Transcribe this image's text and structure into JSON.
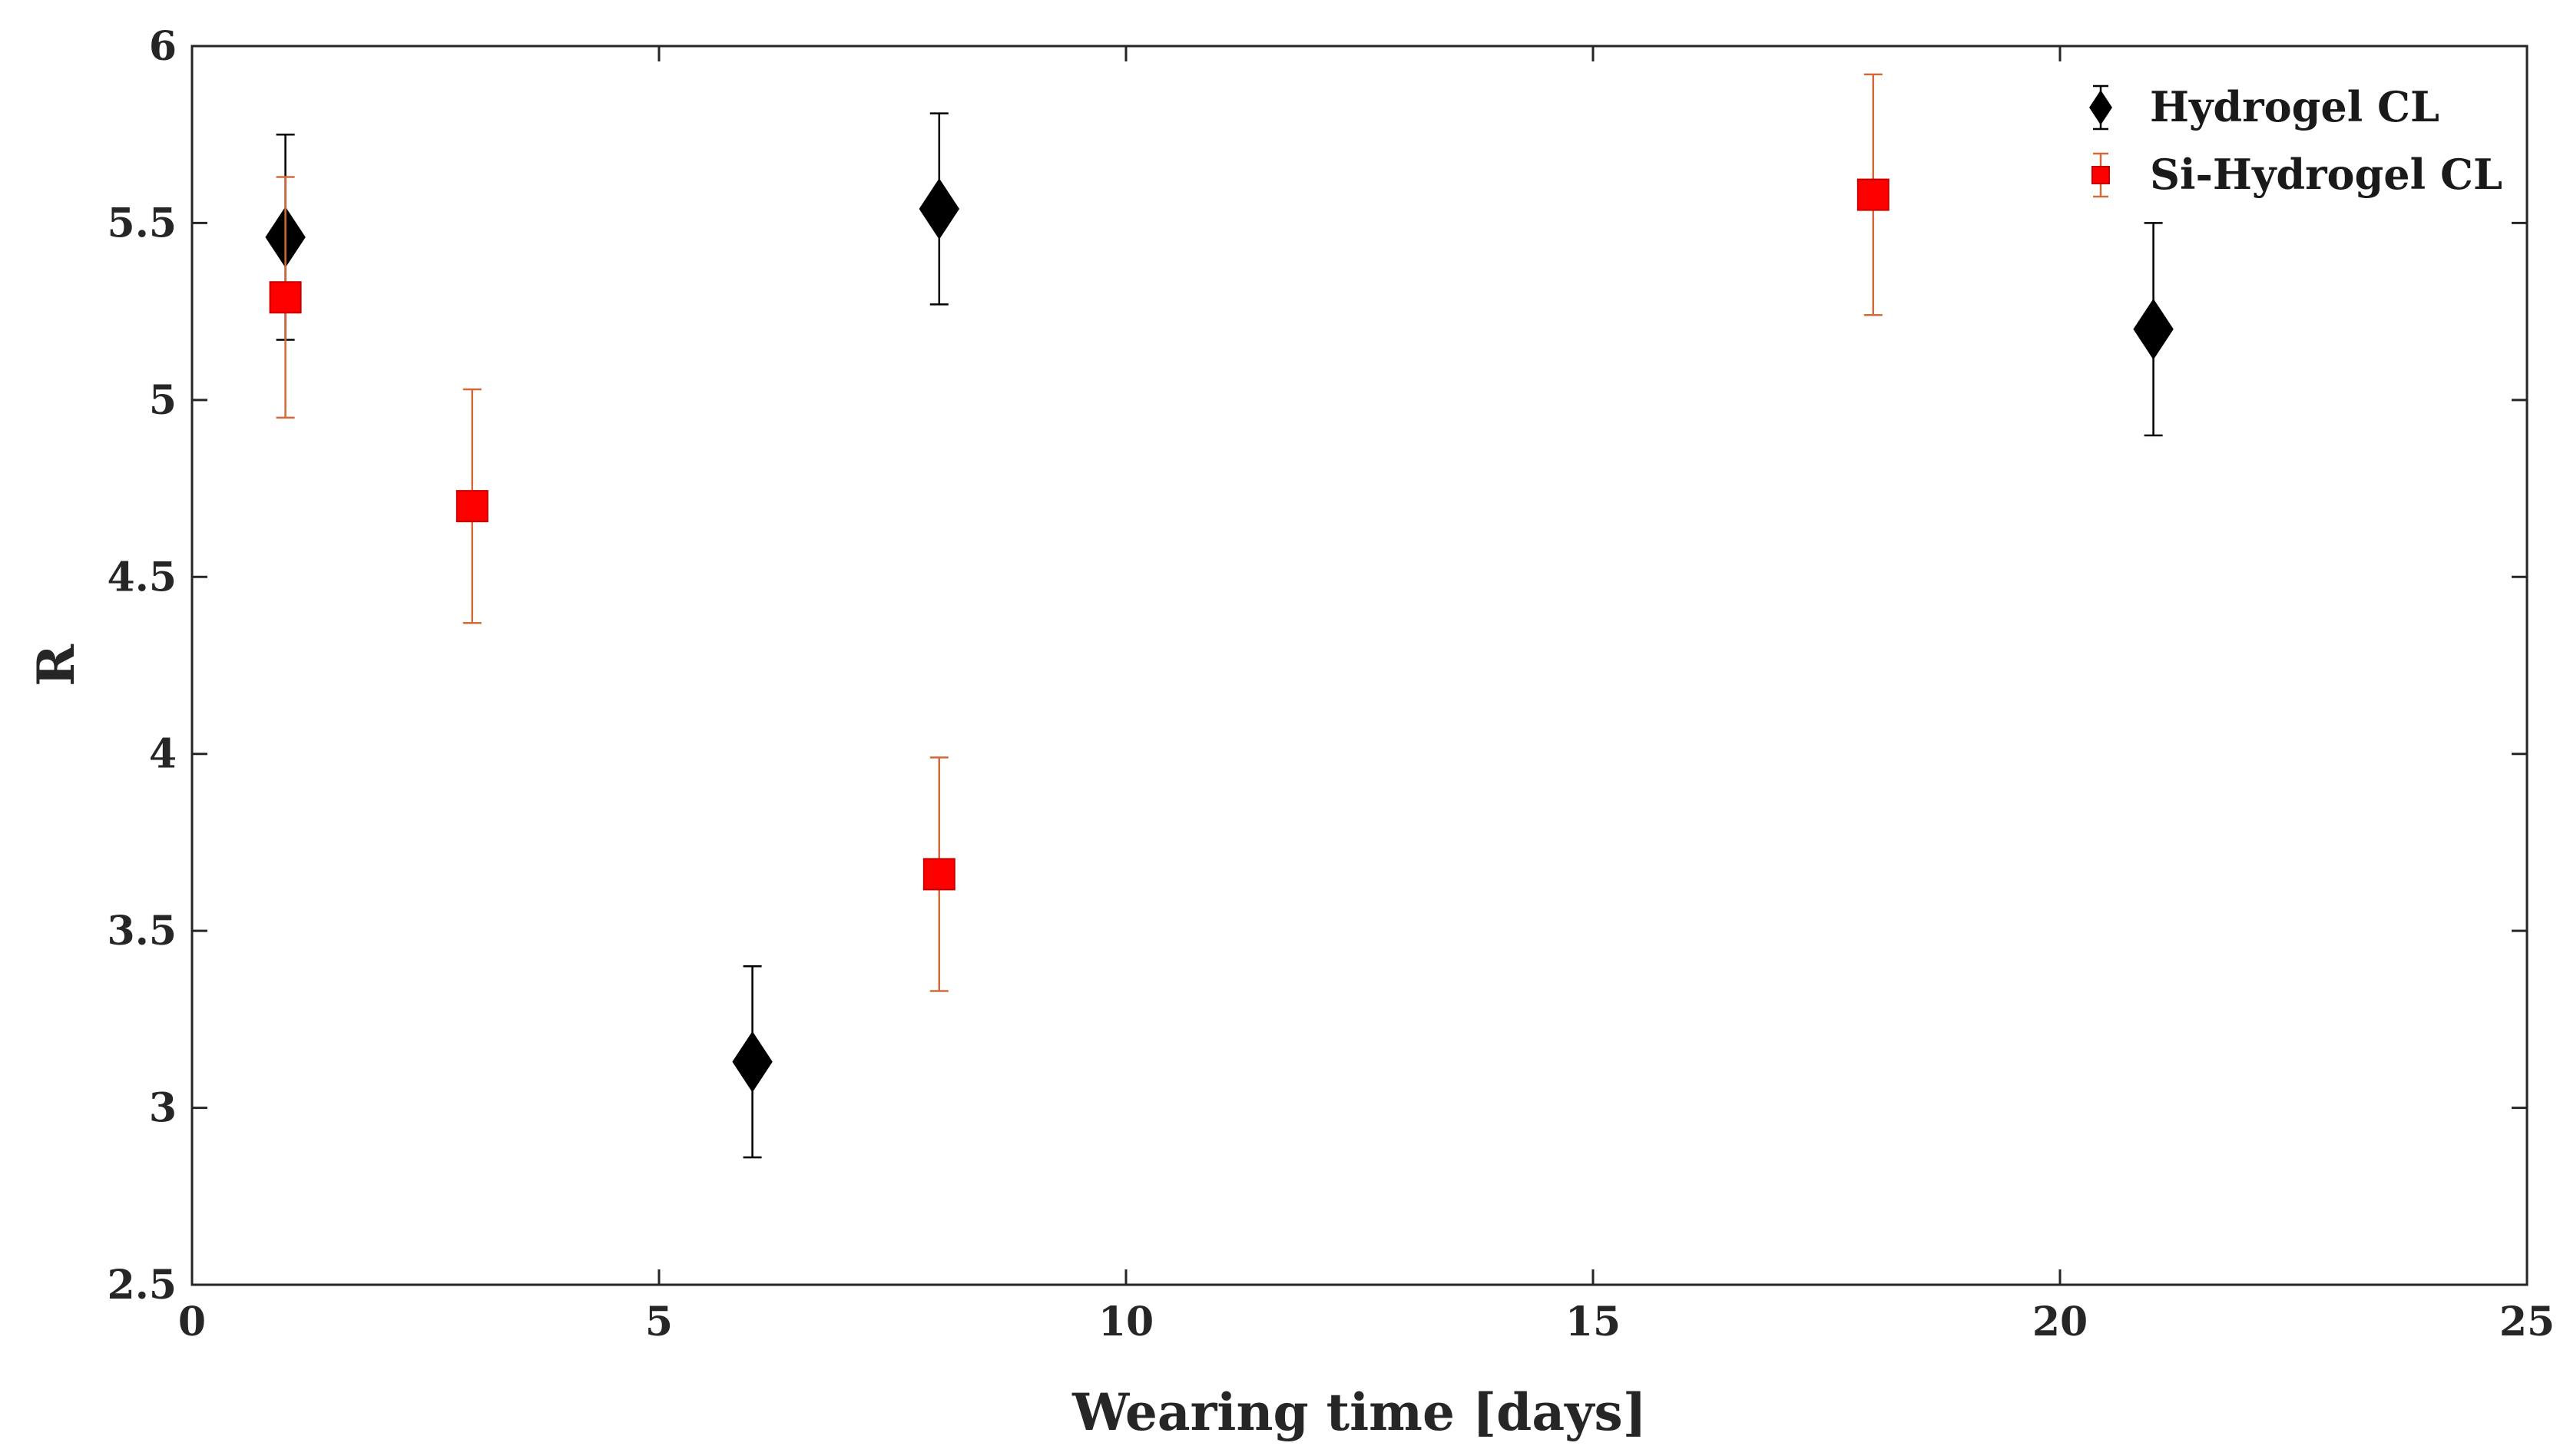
{
  "chart_data": {
    "type": "scatter",
    "title": "",
    "xlabel": "Wearing time [days]",
    "ylabel": "R",
    "xlim": [
      0,
      25
    ],
    "ylim": [
      2.5,
      6
    ],
    "xticks": [
      0,
      5,
      10,
      15,
      20,
      25
    ],
    "xtick_labels": [
      "0",
      "5",
      "10",
      "15",
      "20",
      "25"
    ],
    "yticks": [
      2.5,
      3,
      3.5,
      4,
      4.5,
      5,
      5.5,
      6
    ],
    "ytick_labels": [
      "2.5",
      "3",
      "3.5",
      "4",
      "4.5",
      "5",
      "5.5",
      "6"
    ],
    "grid": false,
    "legend_position": "top-right",
    "series": [
      {
        "name": "Hydrogel CL",
        "marker": "diamond",
        "color": "#000000",
        "errorbar_color": "#000000",
        "points": [
          {
            "x": 1,
            "y": 5.46,
            "err": 0.29
          },
          {
            "x": 6,
            "y": 3.13,
            "err": 0.27
          },
          {
            "x": 8,
            "y": 5.54,
            "err": 0.27
          },
          {
            "x": 21,
            "y": 5.2,
            "err": 0.3
          }
        ]
      },
      {
        "name": "Si-Hydrogel CL",
        "marker": "square",
        "color": "#ff0000",
        "errorbar_color": "#d2693a",
        "points": [
          {
            "x": 1,
            "y": 5.29,
            "err": 0.34
          },
          {
            "x": 3,
            "y": 4.7,
            "err": 0.33
          },
          {
            "x": 8,
            "y": 3.66,
            "err": 0.33
          },
          {
            "x": 18,
            "y": 5.58,
            "err": 0.34
          }
        ]
      }
    ]
  }
}
